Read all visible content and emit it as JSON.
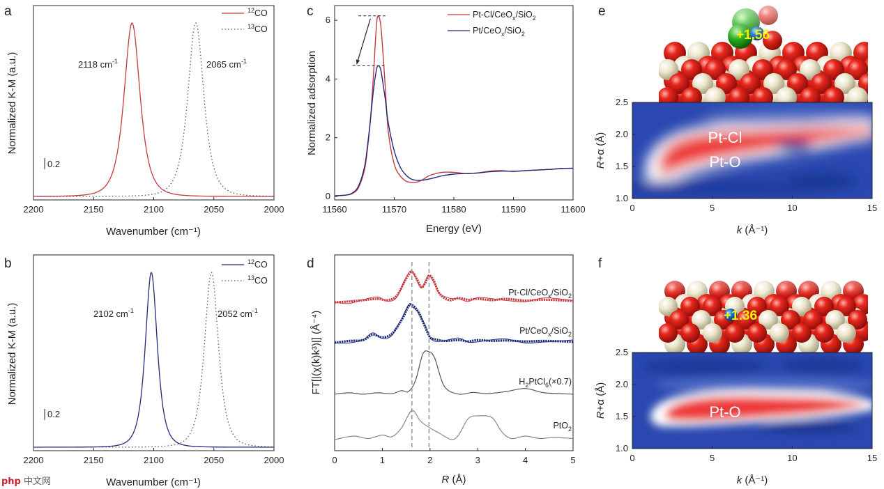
{
  "watermark": {
    "icon": "php",
    "text": "中文网"
  },
  "colors": {
    "red": "#c8383e",
    "blue": "#1f2b7a",
    "gray": "#555555",
    "lightgray": "#888888",
    "dash": "#999999"
  },
  "chart_data": [
    {
      "id": "a",
      "type": "line",
      "panel_label": "a",
      "xlabel": "Wavenumber (cm⁻¹)",
      "ylabel": "Normalized K-M (a.u.)",
      "xlim": [
        2200,
        2000
      ],
      "ylim": [
        -0.02,
        1.1
      ],
      "xticks": [
        2200,
        2150,
        2100,
        2050,
        2000
      ],
      "xtick_labels": [
        "2200",
        "2150",
        "2100",
        "2050",
        "2000"
      ],
      "scale_bar": {
        "label": "0.2",
        "value": 0.2
      },
      "series": [
        {
          "name": "12CO",
          "legend_sup": "12",
          "legend_base": "CO",
          "style": "solid",
          "color": "#c8383e",
          "peak": 2118,
          "height": 1.0,
          "width": 8
        },
        {
          "name": "13CO",
          "legend_sup": "13",
          "legend_base": "CO",
          "style": "dotted",
          "color": "#555555",
          "peak": 2065,
          "height": 1.0,
          "width": 8
        }
      ],
      "annotations": [
        {
          "text": "2118 cm",
          "sup": "-1",
          "x": 2118
        },
        {
          "text": "2065 cm",
          "sup": "-1",
          "x": 2065
        }
      ]
    },
    {
      "id": "b",
      "type": "line",
      "panel_label": "b",
      "xlabel": "Wavenumber (cm⁻¹)",
      "ylabel": "Normalized K-M (a.u.)",
      "xlim": [
        2200,
        2000
      ],
      "ylim": [
        -0.02,
        1.1
      ],
      "xticks": [
        2200,
        2150,
        2100,
        2050,
        2000
      ],
      "xtick_labels": [
        "2200",
        "2150",
        "2100",
        "2050",
        "2000"
      ],
      "scale_bar": {
        "label": "0.2",
        "value": 0.2
      },
      "series": [
        {
          "name": "12CO",
          "legend_sup": "12",
          "legend_base": "CO",
          "style": "solid",
          "color": "#1f2b7a",
          "peak": 2102,
          "height": 1.0,
          "width": 6
        },
        {
          "name": "13CO",
          "legend_sup": "13",
          "legend_base": "CO",
          "style": "dotted",
          "color": "#555555",
          "peak": 2052,
          "height": 1.0,
          "width": 7
        }
      ],
      "annotations": [
        {
          "text": "2102 cm",
          "sup": "-1",
          "x": 2102
        },
        {
          "text": "2052 cm",
          "sup": "-1",
          "x": 2052
        }
      ]
    },
    {
      "id": "c",
      "type": "line",
      "panel_label": "c",
      "xlabel": "Energy (eV)",
      "ylabel": "Normalized adsorption",
      "xlim": [
        11560,
        11600
      ],
      "ylim": [
        0,
        6.5
      ],
      "xticks": [
        11560,
        11570,
        11580,
        11590,
        11600
      ],
      "xtick_labels": [
        "11560",
        "11570",
        "11580",
        "11590",
        "11600"
      ],
      "yticks": [
        0,
        2,
        4,
        6
      ],
      "ytick_labels": [
        "0",
        "2",
        "4",
        "6"
      ],
      "series": [
        {
          "name": "Pt-Cl/CeOx/SiO2",
          "legend_base": "Pt-Cl/CeO",
          "legend_sub1": "x",
          "legend_mid": "/SiO",
          "legend_sub2": "2",
          "color": "#c8383e",
          "x": [
            11560,
            11562,
            11563,
            11564,
            11565,
            11565.5,
            11566,
            11566.5,
            11567,
            11567.3,
            11567.7,
            11568,
            11568.5,
            11569,
            11570,
            11571,
            11572,
            11573,
            11574,
            11575,
            11576,
            11578,
            11580,
            11582,
            11584,
            11586,
            11588,
            11590,
            11592,
            11594,
            11596,
            11598,
            11600
          ],
          "y": [
            0.02,
            0.05,
            0.1,
            0.3,
            0.9,
            1.6,
            2.6,
            4.1,
            5.8,
            6.15,
            5.9,
            5.2,
            3.7,
            2.2,
            1.1,
            0.7,
            0.52,
            0.48,
            0.5,
            0.6,
            0.72,
            0.82,
            0.82,
            0.78,
            0.8,
            0.86,
            0.88,
            0.85,
            0.88,
            0.9,
            0.92,
            0.95,
            0.96
          ]
        },
        {
          "name": "Pt/CeOx/SiO2",
          "legend_base": "Pt/CeO",
          "legend_sub1": "x",
          "legend_mid": "/SiO",
          "legend_sub2": "2",
          "color": "#1f2b7a",
          "x": [
            11560,
            11562,
            11563,
            11564,
            11565,
            11565.5,
            11566,
            11566.5,
            11567,
            11567.3,
            11567.7,
            11568,
            11568.5,
            11569,
            11570,
            11571,
            11572,
            11573,
            11574,
            11575,
            11576,
            11578,
            11580,
            11582,
            11584,
            11586,
            11588,
            11590,
            11592,
            11594,
            11596,
            11598,
            11600
          ],
          "y": [
            0.02,
            0.05,
            0.12,
            0.35,
            1.0,
            1.7,
            2.6,
            3.6,
            4.3,
            4.45,
            4.35,
            4.0,
            3.3,
            2.5,
            1.55,
            1.0,
            0.72,
            0.58,
            0.55,
            0.56,
            0.6,
            0.7,
            0.76,
            0.78,
            0.8,
            0.84,
            0.86,
            0.86,
            0.88,
            0.9,
            0.92,
            0.95,
            0.96
          ]
        }
      ],
      "annotations": [
        {
          "type": "dashed-hline",
          "y": 6.15,
          "x0": 11564.0,
          "x1": 11568.5
        },
        {
          "type": "dashed-hline",
          "y": 4.45,
          "x0": 11563.0,
          "x1": 11568.5
        },
        {
          "type": "arrow",
          "from": [
            11566.0,
            6.05
          ],
          "to": [
            11563.7,
            4.5
          ]
        }
      ]
    },
    {
      "id": "d",
      "type": "line",
      "panel_label": "d",
      "xlabel_italic": "R",
      "xlabel_rest": " (Å)",
      "ylabel": "FT[|(χ(k)k³)|] (Å⁻⁴)",
      "xlim": [
        0,
        5
      ],
      "xticks": [
        0,
        1,
        2,
        3,
        4,
        5
      ],
      "xtick_labels": [
        "0",
        "1",
        "2",
        "3",
        "4",
        "5"
      ],
      "vlines": [
        1.62,
        1.98
      ],
      "series": [
        {
          "name": "Pt-Cl/CeOx/SiO2",
          "label_base": "Pt-Cl/CeO",
          "label_sub1": "x",
          "label_mid": "/SiO",
          "label_sub2": "2",
          "color": "#c8383e",
          "offset": 0.0,
          "thick": true,
          "x": [
            0,
            0.3,
            0.6,
            0.9,
            1.1,
            1.3,
            1.5,
            1.62,
            1.72,
            1.82,
            1.9,
            1.98,
            2.08,
            2.2,
            2.4,
            2.6,
            2.8,
            3.0,
            3.3,
            3.6,
            4.0,
            4.4,
            5.0
          ],
          "y": [
            0.0,
            0.02,
            0.05,
            0.08,
            0.05,
            0.15,
            0.55,
            0.7,
            0.55,
            0.35,
            0.45,
            0.62,
            0.5,
            0.2,
            0.05,
            0.1,
            0.06,
            0.08,
            0.05,
            0.08,
            0.04,
            0.06,
            0.03
          ]
        },
        {
          "name": "Pt/CeOx/SiO2",
          "label_base": "Pt/CeO",
          "label_sub1": "x",
          "label_mid": "/SiO",
          "label_sub2": "2",
          "color": "#1f2b7a",
          "offset": 0.0,
          "thick": true,
          "x": [
            0,
            0.3,
            0.6,
            0.8,
            1.0,
            1.2,
            1.4,
            1.55,
            1.62,
            1.75,
            1.9,
            2.0,
            2.1,
            2.3,
            2.6,
            2.8,
            3.0,
            3.3,
            3.6,
            4.0,
            4.4,
            5.0
          ],
          "y": [
            0.0,
            0.04,
            0.06,
            0.18,
            0.12,
            0.2,
            0.5,
            0.82,
            0.85,
            0.7,
            0.35,
            0.12,
            0.08,
            0.04,
            0.06,
            0.03,
            0.06,
            0.04,
            0.05,
            0.03,
            0.04,
            0.02
          ]
        },
        {
          "name": "H2PtCl6 (x0.7)",
          "label_base": "H",
          "label_sub1": "2",
          "label_mid": "PtCl",
          "label_sub2": "6",
          "label_tail": "(×0.7)",
          "color": "#555555",
          "offset": 0.0,
          "thick": false,
          "x": [
            0,
            0.3,
            0.6,
            0.9,
            1.2,
            1.4,
            1.55,
            1.7,
            1.85,
            1.98,
            2.1,
            2.3,
            2.6,
            2.9,
            3.2,
            3.6,
            4.0,
            4.4,
            5.0
          ],
          "y": [
            0.02,
            0.05,
            0.02,
            0.05,
            0.03,
            0.1,
            0.08,
            0.35,
            0.95,
            1.0,
            0.85,
            0.2,
            0.02,
            0.06,
            0.03,
            0.08,
            0.15,
            0.05,
            0.02
          ]
        },
        {
          "name": "PtO2",
          "label_base": "PtO",
          "label_sub1": "2",
          "color": "#888888",
          "offset": 0.0,
          "thick": false,
          "x": [
            0,
            0.4,
            0.7,
            1.0,
            1.2,
            1.4,
            1.62,
            1.8,
            2.0,
            2.2,
            2.45,
            2.6,
            2.8,
            3.0,
            3.3,
            3.5,
            3.7,
            4.0,
            4.3,
            4.6,
            5.0
          ],
          "y": [
            0.02,
            0.12,
            0.05,
            0.15,
            0.1,
            0.35,
            0.85,
            0.55,
            0.35,
            0.2,
            0.02,
            0.15,
            0.62,
            0.7,
            0.65,
            0.25,
            0.05,
            0.12,
            0.05,
            0.08,
            0.05
          ]
        }
      ]
    },
    {
      "id": "e",
      "type": "heatmap",
      "panel_label": "e",
      "xlabel_italic": "k",
      "xlabel_rest": " (Å⁻¹)",
      "ylabel_italic": "R",
      "ylabel_rest": "+α (Å)",
      "xlim": [
        0,
        15
      ],
      "ylim": [
        1.0,
        2.5
      ],
      "xticks": [
        0,
        5,
        10,
        15
      ],
      "xtick_labels": [
        "0",
        "5",
        "10",
        "15"
      ],
      "yticks": [
        1.0,
        1.5,
        2.0,
        2.5
      ],
      "ytick_labels": [
        "1.0",
        "1.5",
        "2.0",
        "2.5"
      ],
      "region_labels": [
        {
          "text": "Pt-Cl",
          "x": 7.5,
          "y": 1.95
        },
        {
          "text": "Pt-O",
          "x": 7.5,
          "y": 1.57
        }
      ],
      "structure_label": "+1.56"
    },
    {
      "id": "f",
      "type": "heatmap",
      "panel_label": "f",
      "xlabel_italic": "k",
      "xlabel_rest": " (Å⁻¹)",
      "ylabel_italic": "R",
      "ylabel_rest": "+α (Å)",
      "xlim": [
        0,
        15
      ],
      "ylim": [
        1.0,
        2.5
      ],
      "xticks": [
        0,
        5,
        10,
        15
      ],
      "xtick_labels": [
        "0",
        "5",
        "10",
        "15"
      ],
      "yticks": [
        1.0,
        1.5,
        2.0,
        2.5
      ],
      "ytick_labels": [
        "1.0",
        "1.5",
        "2.0",
        "2.5"
      ],
      "region_labels": [
        {
          "text": "Pt-O",
          "x": 6.5,
          "y": 1.55
        }
      ],
      "structure_label": "+1.36"
    }
  ]
}
